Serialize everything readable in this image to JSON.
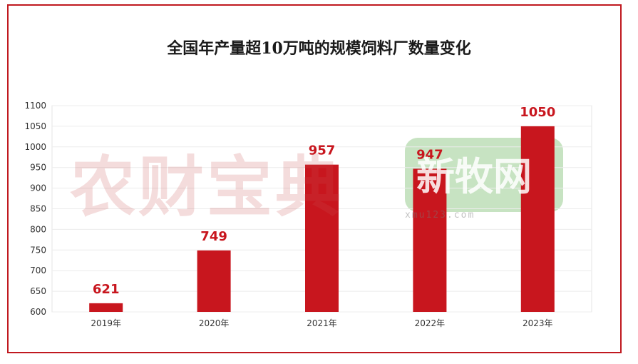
{
  "chart_data": {
    "type": "bar",
    "title": "全国年产量超10万吨的规模饲料厂数量变化",
    "categories": [
      "2019年",
      "2020年",
      "2021年",
      "2022年",
      "2023年"
    ],
    "values": [
      621,
      749,
      957,
      947,
      1050
    ],
    "ylim": [
      600,
      1100
    ],
    "yticks": [
      600,
      650,
      700,
      750,
      800,
      850,
      900,
      950,
      1000,
      1050,
      1100
    ],
    "bar_color": "#c8161e",
    "label_color": "#c8161e",
    "grid": true
  },
  "watermarks": {
    "left": "农财宝典",
    "right": "新牧网",
    "right_url": "xmu123.com"
  }
}
